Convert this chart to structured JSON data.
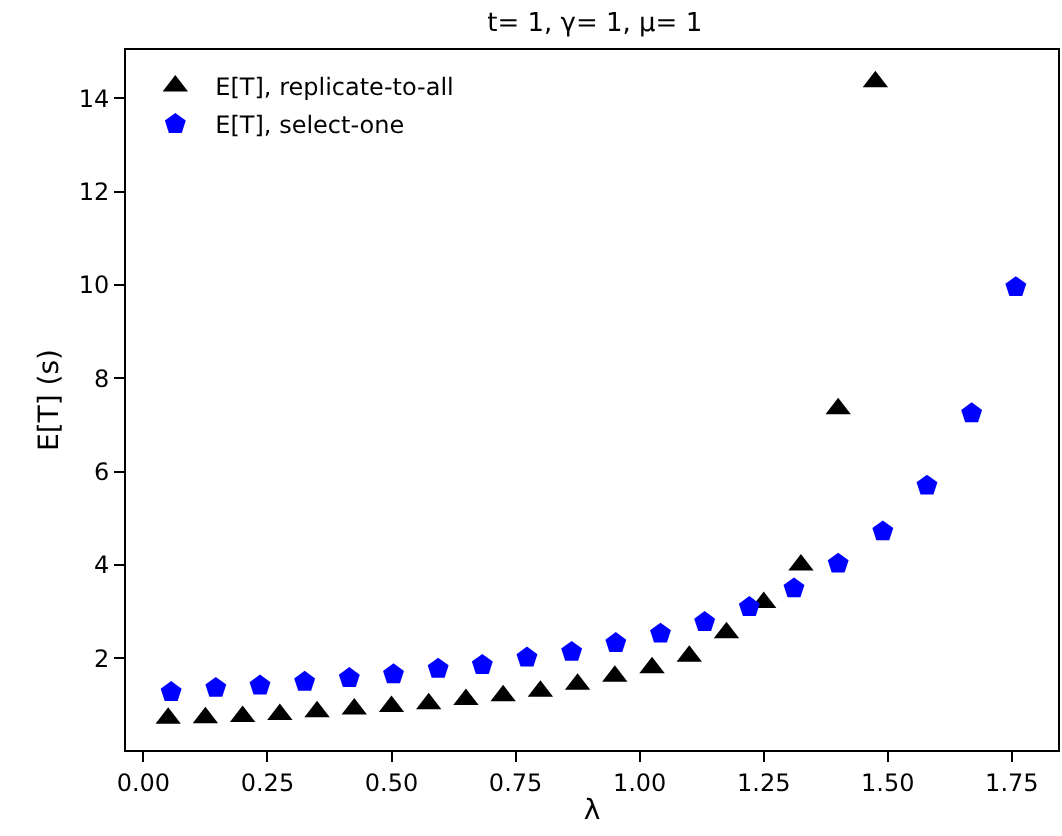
{
  "chart_data": {
    "type": "scatter",
    "title": "t= 1, γ= 1, μ= 1",
    "xlabel": "λ",
    "ylabel": "E[T] (s)",
    "series": [
      {
        "name": "E[T], replicate-to-all",
        "color": "#000000",
        "marker": "triangle",
        "x": [
          0.05,
          0.125,
          0.2,
          0.275,
          0.35,
          0.425,
          0.5,
          0.575,
          0.65,
          0.725,
          0.8,
          0.875,
          0.95,
          1.025,
          1.1,
          1.175,
          1.25,
          1.325,
          1.4,
          1.475
        ],
        "values": [
          0.72,
          0.73,
          0.76,
          0.8,
          0.86,
          0.92,
          0.97,
          1.03,
          1.12,
          1.2,
          1.3,
          1.45,
          1.62,
          1.8,
          2.05,
          2.55,
          3.2,
          4.0,
          7.35,
          14.35
        ]
      },
      {
        "name": "E[T], select-one",
        "color": "#0000ff",
        "x": [
          0.056,
          0.146,
          0.235,
          0.325,
          0.415,
          0.504,
          0.594,
          0.683,
          0.773,
          0.863,
          0.952,
          1.042,
          1.131,
          1.221,
          1.311,
          1.4,
          1.49,
          1.579,
          1.669,
          1.758
        ],
        "values": [
          1.28,
          1.37,
          1.42,
          1.5,
          1.58,
          1.66,
          1.78,
          1.86,
          2.02,
          2.14,
          2.33,
          2.53,
          2.78,
          3.1,
          3.5,
          4.03,
          4.72,
          5.7,
          7.25,
          9.95
        ]
      }
    ],
    "xlim": [
      -0.035,
      1.843
    ],
    "xticks": [
      {
        "value": 0,
        "label": "0.00"
      },
      {
        "value": 0.25,
        "label": "0.25"
      },
      {
        "value": 0.5,
        "label": "0.50"
      },
      {
        "value": 0.75,
        "label": "0.75"
      },
      {
        "value": 1,
        "label": "1.00"
      },
      {
        "value": 1.25,
        "label": "1.25"
      },
      {
        "value": 1.5,
        "label": "1.50"
      },
      {
        "value": 1.75,
        "label": "1.75"
      }
    ],
    "ylim": [
      0.04,
      15.03
    ],
    "yticks": [
      2,
      4,
      6,
      8,
      10,
      12,
      14
    ],
    "legend": "top left"
  }
}
